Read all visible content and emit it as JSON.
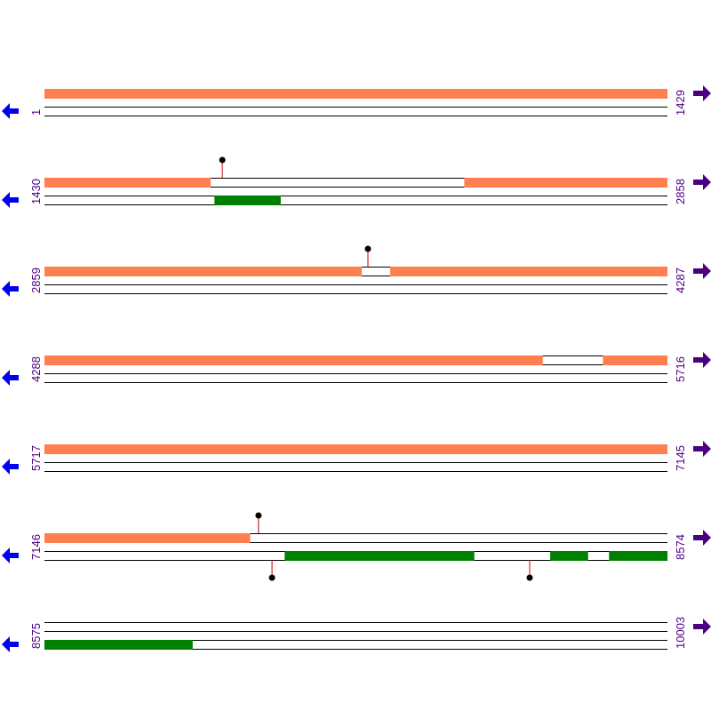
{
  "colors": {
    "forward_feature": "#ff7f50",
    "reverse_feature": "#008000",
    "marker_stem": "#cc0000",
    "marker_head": "#000000",
    "track_line": "#000000",
    "reverse_arrow": "#0000ee",
    "forward_arrow": "#4b0082",
    "coord_text": "#4b0082"
  },
  "icons": {
    "reverse_arrow": "arrow-left-icon",
    "forward_arrow": "arrow-right-icon"
  },
  "rows": [
    {
      "start": 1,
      "end": 1429,
      "start_label": "1",
      "end_label": "1429",
      "forward_features": [
        [
          1,
          1429
        ]
      ],
      "reverse_features": [],
      "markers": []
    },
    {
      "start": 1430,
      "end": 2858,
      "start_label": "1430",
      "end_label": "2858",
      "forward_features": [
        [
          1430,
          1810
        ],
        [
          2393,
          2858
        ]
      ],
      "reverse_features": [
        [
          1820,
          1971
        ]
      ],
      "markers": [
        {
          "pos": 1838,
          "strand": "forward"
        }
      ]
    },
    {
      "start": 2859,
      "end": 4287,
      "start_label": "2859",
      "end_label": "4287",
      "forward_features": [
        [
          2859,
          3586
        ],
        [
          3652,
          4287
        ]
      ],
      "reverse_features": [],
      "markers": [
        {
          "pos": 3601,
          "strand": "forward"
        }
      ]
    },
    {
      "start": 4288,
      "end": 5716,
      "start_label": "4288",
      "end_label": "5716",
      "forward_features": [
        [
          4288,
          5430
        ],
        [
          5569,
          5716
        ]
      ],
      "reverse_features": [],
      "markers": []
    },
    {
      "start": 5717,
      "end": 7145,
      "start_label": "5717",
      "end_label": "7145",
      "forward_features": [
        [
          5717,
          7145
        ]
      ],
      "reverse_features": [],
      "markers": []
    },
    {
      "start": 7146,
      "end": 8574,
      "start_label": "7146",
      "end_label": "8574",
      "forward_features": [
        [
          7146,
          7617
        ]
      ],
      "reverse_features": [
        [
          7697,
          8131
        ],
        [
          8306,
          8392
        ],
        [
          8441,
          8574
        ]
      ],
      "markers": [
        {
          "pos": 7637,
          "strand": "forward"
        },
        {
          "pos": 7668,
          "strand": "reverse"
        },
        {
          "pos": 8259,
          "strand": "reverse"
        }
      ]
    },
    {
      "start": 8575,
      "end": 10003,
      "start_label": "8575",
      "end_label": "10003",
      "forward_features": [],
      "reverse_features": [
        [
          8575,
          8914
        ]
      ],
      "markers": []
    }
  ]
}
